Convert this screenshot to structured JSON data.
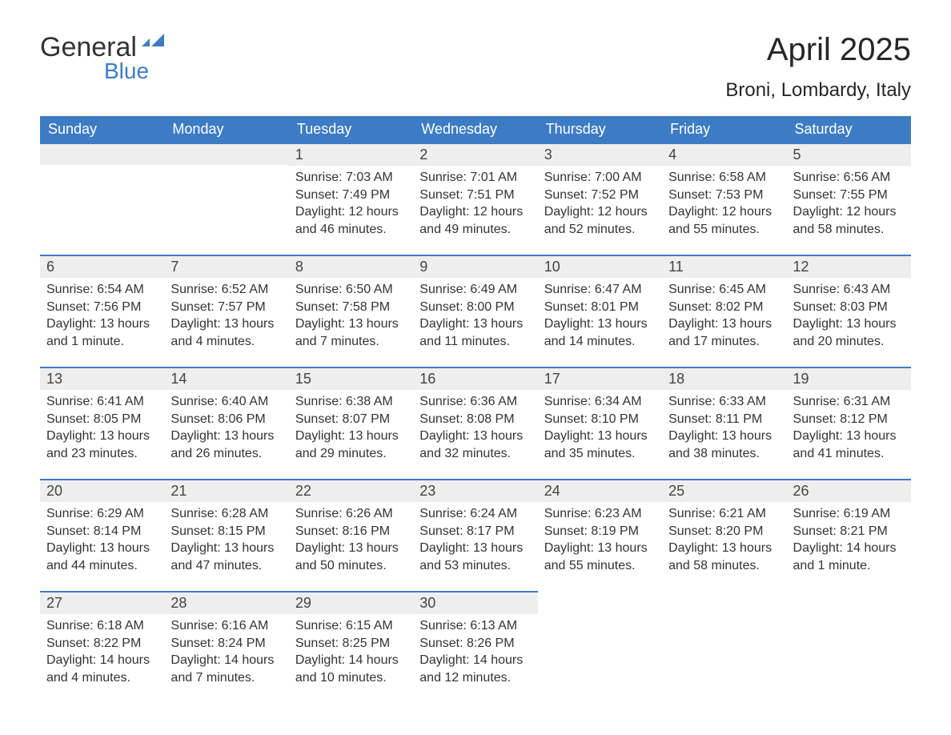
{
  "logo": {
    "text_general": "General",
    "text_blue": "Blue",
    "flag_color": "#3d7cc4"
  },
  "title": "April 2025",
  "subtitle": "Broni, Lombardy, Italy",
  "colors": {
    "header_bg": "#3d7cc4",
    "header_text": "#ffffff",
    "daynum_bg": "#eeeeee",
    "daynum_border": "#3d7cc4",
    "body_text": "#333333",
    "page_bg": "#ffffff"
  },
  "weekdays": [
    "Sunday",
    "Monday",
    "Tuesday",
    "Wednesday",
    "Thursday",
    "Friday",
    "Saturday"
  ],
  "weeks": [
    [
      {
        "day": null
      },
      {
        "day": null
      },
      {
        "day": 1,
        "sunrise": "7:03 AM",
        "sunset": "7:49 PM",
        "daylight": "12 hours and 46 minutes."
      },
      {
        "day": 2,
        "sunrise": "7:01 AM",
        "sunset": "7:51 PM",
        "daylight": "12 hours and 49 minutes."
      },
      {
        "day": 3,
        "sunrise": "7:00 AM",
        "sunset": "7:52 PM",
        "daylight": "12 hours and 52 minutes."
      },
      {
        "day": 4,
        "sunrise": "6:58 AM",
        "sunset": "7:53 PM",
        "daylight": "12 hours and 55 minutes."
      },
      {
        "day": 5,
        "sunrise": "6:56 AM",
        "sunset": "7:55 PM",
        "daylight": "12 hours and 58 minutes."
      }
    ],
    [
      {
        "day": 6,
        "sunrise": "6:54 AM",
        "sunset": "7:56 PM",
        "daylight": "13 hours and 1 minute."
      },
      {
        "day": 7,
        "sunrise": "6:52 AM",
        "sunset": "7:57 PM",
        "daylight": "13 hours and 4 minutes."
      },
      {
        "day": 8,
        "sunrise": "6:50 AM",
        "sunset": "7:58 PM",
        "daylight": "13 hours and 7 minutes."
      },
      {
        "day": 9,
        "sunrise": "6:49 AM",
        "sunset": "8:00 PM",
        "daylight": "13 hours and 11 minutes."
      },
      {
        "day": 10,
        "sunrise": "6:47 AM",
        "sunset": "8:01 PM",
        "daylight": "13 hours and 14 minutes."
      },
      {
        "day": 11,
        "sunrise": "6:45 AM",
        "sunset": "8:02 PM",
        "daylight": "13 hours and 17 minutes."
      },
      {
        "day": 12,
        "sunrise": "6:43 AM",
        "sunset": "8:03 PM",
        "daylight": "13 hours and 20 minutes."
      }
    ],
    [
      {
        "day": 13,
        "sunrise": "6:41 AM",
        "sunset": "8:05 PM",
        "daylight": "13 hours and 23 minutes."
      },
      {
        "day": 14,
        "sunrise": "6:40 AM",
        "sunset": "8:06 PM",
        "daylight": "13 hours and 26 minutes."
      },
      {
        "day": 15,
        "sunrise": "6:38 AM",
        "sunset": "8:07 PM",
        "daylight": "13 hours and 29 minutes."
      },
      {
        "day": 16,
        "sunrise": "6:36 AM",
        "sunset": "8:08 PM",
        "daylight": "13 hours and 32 minutes."
      },
      {
        "day": 17,
        "sunrise": "6:34 AM",
        "sunset": "8:10 PM",
        "daylight": "13 hours and 35 minutes."
      },
      {
        "day": 18,
        "sunrise": "6:33 AM",
        "sunset": "8:11 PM",
        "daylight": "13 hours and 38 minutes."
      },
      {
        "day": 19,
        "sunrise": "6:31 AM",
        "sunset": "8:12 PM",
        "daylight": "13 hours and 41 minutes."
      }
    ],
    [
      {
        "day": 20,
        "sunrise": "6:29 AM",
        "sunset": "8:14 PM",
        "daylight": "13 hours and 44 minutes."
      },
      {
        "day": 21,
        "sunrise": "6:28 AM",
        "sunset": "8:15 PM",
        "daylight": "13 hours and 47 minutes."
      },
      {
        "day": 22,
        "sunrise": "6:26 AM",
        "sunset": "8:16 PM",
        "daylight": "13 hours and 50 minutes."
      },
      {
        "day": 23,
        "sunrise": "6:24 AM",
        "sunset": "8:17 PM",
        "daylight": "13 hours and 53 minutes."
      },
      {
        "day": 24,
        "sunrise": "6:23 AM",
        "sunset": "8:19 PM",
        "daylight": "13 hours and 55 minutes."
      },
      {
        "day": 25,
        "sunrise": "6:21 AM",
        "sunset": "8:20 PM",
        "daylight": "13 hours and 58 minutes."
      },
      {
        "day": 26,
        "sunrise": "6:19 AM",
        "sunset": "8:21 PM",
        "daylight": "14 hours and 1 minute."
      }
    ],
    [
      {
        "day": 27,
        "sunrise": "6:18 AM",
        "sunset": "8:22 PM",
        "daylight": "14 hours and 4 minutes."
      },
      {
        "day": 28,
        "sunrise": "6:16 AM",
        "sunset": "8:24 PM",
        "daylight": "14 hours and 7 minutes."
      },
      {
        "day": 29,
        "sunrise": "6:15 AM",
        "sunset": "8:25 PM",
        "daylight": "14 hours and 10 minutes."
      },
      {
        "day": 30,
        "sunrise": "6:13 AM",
        "sunset": "8:26 PM",
        "daylight": "14 hours and 12 minutes."
      },
      {
        "day": null
      },
      {
        "day": null
      },
      {
        "day": null
      }
    ]
  ],
  "labels": {
    "sunrise": "Sunrise: ",
    "sunset": "Sunset: ",
    "daylight": "Daylight: "
  }
}
